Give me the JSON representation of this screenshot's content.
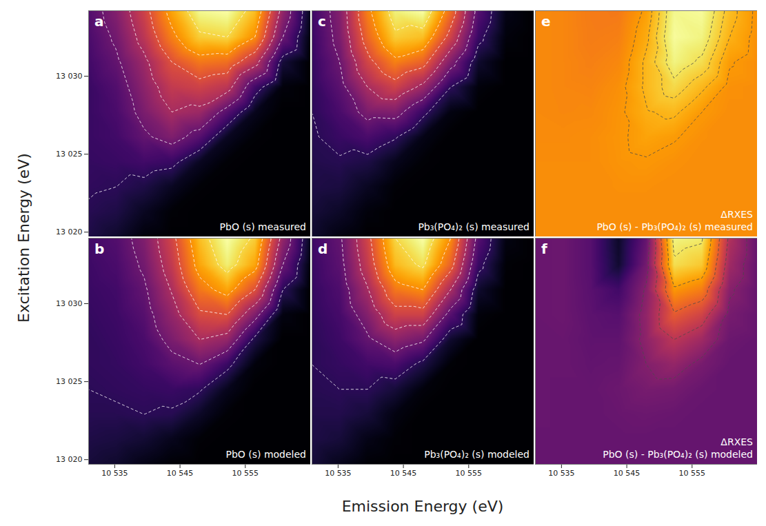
{
  "xlabel": "Emission Energy (eV)",
  "ylabel": "Excitation Energy (eV)",
  "chart_data": [
    {
      "type": "heatmap",
      "letter": "a",
      "title": "PbO (s) measured",
      "x": [
        10531,
        10535.25,
        10539.5,
        10543.75,
        10548,
        10552.25,
        10556.5,
        10560.75,
        10565
      ],
      "y": [
        13019.7,
        13021.3,
        13022.9,
        13024.5,
        13026.1,
        13027.7,
        13029.3,
        13030.9,
        13032.5,
        13034.2
      ],
      "values": [
        [
          0.12,
          0.08,
          0.02,
          0,
          0,
          0,
          0,
          0,
          0
        ],
        [
          0.14,
          0.12,
          0.06,
          0.01,
          0,
          0,
          0,
          0,
          0
        ],
        [
          0.16,
          0.15,
          0.12,
          0.06,
          0.01,
          0,
          0,
          0,
          0
        ],
        [
          0.17,
          0.18,
          0.2,
          0.18,
          0.06,
          0.01,
          0,
          0,
          0
        ],
        [
          0.18,
          0.2,
          0.28,
          0.35,
          0.25,
          0.06,
          0.01,
          0,
          0
        ],
        [
          0.18,
          0.22,
          0.34,
          0.45,
          0.42,
          0.25,
          0.05,
          0,
          0
        ],
        [
          0.18,
          0.24,
          0.38,
          0.52,
          0.55,
          0.5,
          0.2,
          0.02,
          0
        ],
        [
          0.2,
          0.28,
          0.42,
          0.6,
          0.7,
          0.68,
          0.5,
          0.1,
          0
        ],
        [
          0.22,
          0.32,
          0.5,
          0.72,
          0.88,
          0.9,
          0.75,
          0.3,
          0.02
        ],
        [
          0.24,
          0.36,
          0.55,
          0.8,
          0.98,
          1.0,
          0.85,
          0.4,
          0.05
        ]
      ],
      "xlim": [
        10531,
        10565
      ],
      "ylim": [
        13019.7,
        13034.2
      ],
      "xticks": [
        {
          "value": 10535,
          "label": "10 535"
        },
        {
          "value": 10545,
          "label": "10 545"
        },
        {
          "value": 10555,
          "label": "10 555"
        }
      ],
      "yticks": [
        {
          "value": 13020,
          "label": "13 020"
        },
        {
          "value": 13025,
          "label": "13 025"
        },
        {
          "value": 13030,
          "label": "13 030"
        }
      ],
      "tick_labels": "y",
      "color_range": [
        0,
        1
      ],
      "contour_levels": [
        0.15,
        0.3,
        0.45,
        0.6,
        0.75,
        0.9
      ]
    },
    {
      "type": "heatmap",
      "letter": "b",
      "title": "PbO (s) modeled",
      "x": [
        10531,
        10535.25,
        10539.5,
        10543.75,
        10548,
        10552.25,
        10556.5,
        10560.75,
        10565
      ],
      "y": [
        13019.7,
        13021.3,
        13022.9,
        13024.5,
        13026.1,
        13027.7,
        13029.3,
        13030.9,
        13032.5,
        13034.2
      ],
      "values": [
        [
          0.1,
          0.08,
          0.04,
          0.01,
          0,
          0,
          0,
          0,
          0
        ],
        [
          0.12,
          0.11,
          0.09,
          0.05,
          0.01,
          0,
          0,
          0,
          0
        ],
        [
          0.14,
          0.14,
          0.15,
          0.14,
          0.07,
          0.01,
          0,
          0,
          0
        ],
        [
          0.15,
          0.16,
          0.17,
          0.18,
          0.16,
          0.05,
          0,
          0,
          0
        ],
        [
          0.16,
          0.17,
          0.2,
          0.26,
          0.3,
          0.18,
          0.02,
          0,
          0
        ],
        [
          0.16,
          0.18,
          0.22,
          0.34,
          0.45,
          0.4,
          0.12,
          0,
          0
        ],
        [
          0.17,
          0.19,
          0.25,
          0.4,
          0.58,
          0.6,
          0.35,
          0.03,
          0
        ],
        [
          0.18,
          0.2,
          0.28,
          0.46,
          0.7,
          0.8,
          0.6,
          0.15,
          0
        ],
        [
          0.19,
          0.22,
          0.32,
          0.52,
          0.8,
          0.95,
          0.8,
          0.3,
          0.02
        ],
        [
          0.2,
          0.24,
          0.35,
          0.56,
          0.85,
          1.0,
          0.88,
          0.4,
          0.05
        ]
      ],
      "xlim": [
        10531,
        10565
      ],
      "ylim": [
        13019.7,
        13034.2
      ],
      "xticks": [
        {
          "value": 10535,
          "label": "10 535"
        },
        {
          "value": 10545,
          "label": "10 545"
        },
        {
          "value": 10555,
          "label": "10 555"
        }
      ],
      "yticks": [
        {
          "value": 13020,
          "label": "13 020"
        },
        {
          "value": 13025,
          "label": "13 025"
        },
        {
          "value": 13030,
          "label": "13 030"
        }
      ],
      "tick_labels": true,
      "color_range": [
        0,
        1
      ],
      "contour_levels": [
        0.15,
        0.3,
        0.45,
        0.6,
        0.75,
        0.9
      ]
    },
    {
      "type": "heatmap",
      "letter": "c",
      "title": "Pb₃(PO₄)₂ (s) measured",
      "x": [
        10531,
        10535.25,
        10539.5,
        10543.75,
        10548,
        10552.25,
        10556.5,
        10560.75,
        10565
      ],
      "y": [
        13019.7,
        13021.3,
        13022.9,
        13024.5,
        13026.1,
        13027.7,
        13029.3,
        13030.9,
        13032.5,
        13034.2
      ],
      "values": [
        [
          0.08,
          0.03,
          0,
          0,
          0,
          0,
          0,
          0,
          0
        ],
        [
          0.1,
          0.07,
          0.02,
          0,
          0,
          0,
          0,
          0,
          0
        ],
        [
          0.12,
          0.11,
          0.06,
          0.01,
          0,
          0,
          0,
          0,
          0
        ],
        [
          0.13,
          0.14,
          0.12,
          0.05,
          0.01,
          0,
          0,
          0,
          0
        ],
        [
          0.14,
          0.18,
          0.22,
          0.16,
          0.04,
          0,
          0,
          0,
          0
        ],
        [
          0.15,
          0.22,
          0.34,
          0.35,
          0.18,
          0.03,
          0,
          0,
          0
        ],
        [
          0.16,
          0.26,
          0.45,
          0.55,
          0.42,
          0.15,
          0.02,
          0,
          0
        ],
        [
          0.17,
          0.3,
          0.56,
          0.72,
          0.65,
          0.35,
          0.08,
          0,
          0
        ],
        [
          0.18,
          0.34,
          0.66,
          0.88,
          0.85,
          0.55,
          0.18,
          0.02,
          0
        ],
        [
          0.19,
          0.36,
          0.72,
          0.96,
          1.0,
          0.68,
          0.25,
          0.04,
          0
        ]
      ],
      "xlim": [
        10531,
        10565
      ],
      "ylim": [
        13019.7,
        13034.2
      ],
      "xticks": [
        {
          "value": 10535,
          "label": "10 535"
        },
        {
          "value": 10545,
          "label": "10 545"
        },
        {
          "value": 10555,
          "label": "10 555"
        }
      ],
      "yticks": [
        {
          "value": 13020,
          "label": "13 020"
        },
        {
          "value": 13025,
          "label": "13 025"
        },
        {
          "value": 13030,
          "label": "13 030"
        }
      ],
      "tick_labels": false,
      "color_range": [
        0,
        1
      ],
      "contour_levels": [
        0.15,
        0.3,
        0.45,
        0.6,
        0.75,
        0.9
      ]
    },
    {
      "type": "heatmap",
      "letter": "d",
      "title": "Pb₃(PO₄)₂ (s) modeled",
      "x": [
        10531,
        10535.25,
        10539.5,
        10543.75,
        10548,
        10552.25,
        10556.5,
        10560.75,
        10565
      ],
      "y": [
        13019.7,
        13021.3,
        13022.9,
        13024.5,
        13026.1,
        13027.7,
        13029.3,
        13030.9,
        13032.5,
        13034.2
      ],
      "values": [
        [
          0.1,
          0.05,
          0.01,
          0,
          0,
          0,
          0,
          0,
          0
        ],
        [
          0.12,
          0.1,
          0.04,
          0.01,
          0,
          0,
          0,
          0,
          0
        ],
        [
          0.13,
          0.13,
          0.1,
          0.03,
          0,
          0,
          0,
          0,
          0
        ],
        [
          0.14,
          0.15,
          0.15,
          0.1,
          0.02,
          0,
          0,
          0,
          0
        ],
        [
          0.15,
          0.17,
          0.2,
          0.22,
          0.12,
          0.01,
          0,
          0,
          0
        ],
        [
          0.15,
          0.19,
          0.28,
          0.38,
          0.32,
          0.08,
          0,
          0,
          0
        ],
        [
          0.16,
          0.21,
          0.36,
          0.55,
          0.55,
          0.25,
          0.02,
          0,
          0
        ],
        [
          0.17,
          0.23,
          0.44,
          0.7,
          0.75,
          0.45,
          0.08,
          0,
          0
        ],
        [
          0.18,
          0.26,
          0.52,
          0.84,
          0.92,
          0.65,
          0.18,
          0.01,
          0
        ],
        [
          0.19,
          0.28,
          0.56,
          0.9,
          1.0,
          0.75,
          0.25,
          0.03,
          0
        ]
      ],
      "xlim": [
        10531,
        10565
      ],
      "ylim": [
        13019.7,
        13034.2
      ],
      "xticks": [
        {
          "value": 10535,
          "label": "10 535"
        },
        {
          "value": 10545,
          "label": "10 545"
        },
        {
          "value": 10555,
          "label": "10 555"
        }
      ],
      "yticks": [
        {
          "value": 13020,
          "label": "13 020"
        },
        {
          "value": 13025,
          "label": "13 025"
        },
        {
          "value": 13030,
          "label": "13 030"
        }
      ],
      "tick_labels": "x",
      "color_range": [
        0,
        1
      ],
      "contour_levels": [
        0.15,
        0.3,
        0.45,
        0.6,
        0.75,
        0.9
      ]
    },
    {
      "type": "heatmap",
      "letter": "e",
      "annotation": "ΔRXES",
      "title": "PbO (s) - Pb₃(PO₄)₂ (s) measured",
      "x": [
        10531,
        10535.25,
        10539.5,
        10543.75,
        10548,
        10552.25,
        10556.5,
        10560.75,
        10565
      ],
      "y": [
        13019.7,
        13021.3,
        13022.9,
        13024.5,
        13026.1,
        13027.7,
        13029.3,
        13030.9,
        13032.5,
        13034.2
      ],
      "values": [
        [
          0,
          0,
          0,
          0,
          0,
          0,
          0,
          0,
          0
        ],
        [
          0,
          0,
          0,
          0,
          0,
          0,
          0,
          0,
          0
        ],
        [
          0,
          0,
          0,
          0.02,
          0.02,
          0,
          0,
          0,
          0
        ],
        [
          0,
          0,
          0,
          0.05,
          0.08,
          0.03,
          0,
          0,
          0
        ],
        [
          -0.02,
          -0.02,
          0,
          0.06,
          0.18,
          0.12,
          0.02,
          0,
          0
        ],
        [
          -0.03,
          -0.05,
          -0.04,
          0.05,
          0.28,
          0.35,
          0.1,
          0,
          0
        ],
        [
          -0.03,
          -0.06,
          -0.08,
          0.02,
          0.35,
          0.62,
          0.35,
          0.03,
          0
        ],
        [
          -0.03,
          -0.06,
          -0.12,
          -0.05,
          0.35,
          0.85,
          0.65,
          0.12,
          0
        ],
        [
          -0.03,
          -0.06,
          -0.15,
          -0.12,
          0.25,
          0.95,
          0.85,
          0.3,
          0.02
        ],
        [
          -0.03,
          -0.06,
          -0.16,
          -0.18,
          0.15,
          0.9,
          0.95,
          0.4,
          0.04
        ]
      ],
      "xlim": [
        10531,
        10565
      ],
      "ylim": [
        13019.7,
        13034.2
      ],
      "xticks": [
        {
          "value": 10535,
          "label": "10 535"
        },
        {
          "value": 10545,
          "label": "10 545"
        },
        {
          "value": 10555,
          "label": "10 555"
        }
      ],
      "yticks": [
        {
          "value": 13020,
          "label": "13 020"
        },
        {
          "value": 13025,
          "label": "13 025"
        },
        {
          "value": 13030,
          "label": "13 030"
        }
      ],
      "tick_labels": false,
      "color_range": [
        -3,
        1
      ],
      "contour_levels": [
        0.1,
        0.3,
        0.5,
        0.7
      ]
    },
    {
      "type": "heatmap",
      "letter": "f",
      "annotation": "ΔRXES",
      "title": "PbO (s) - Pb₃(PO₄)₂ (s) modeled",
      "x": [
        10531,
        10535.25,
        10539.5,
        10543.75,
        10548,
        10552.25,
        10556.5,
        10560.75,
        10565
      ],
      "y": [
        13019.7,
        13021.3,
        13022.9,
        13024.5,
        13026.1,
        13027.7,
        13029.3,
        13030.9,
        13032.5,
        13034.2
      ],
      "values": [
        [
          0,
          0,
          0,
          0,
          0,
          0,
          0,
          0,
          0
        ],
        [
          0,
          0,
          0,
          0,
          0,
          0,
          0,
          0,
          0
        ],
        [
          0.01,
          0,
          0,
          0.01,
          0.02,
          0.01,
          0,
          0,
          0
        ],
        [
          0.01,
          0,
          0,
          0.02,
          0.06,
          0.05,
          0.01,
          0,
          0
        ],
        [
          0.01,
          0.01,
          -0.01,
          0,
          0.1,
          0.16,
          0.06,
          0,
          0
        ],
        [
          0.01,
          0.01,
          -0.02,
          -0.02,
          0.14,
          0.3,
          0.2,
          0.02,
          0
        ],
        [
          0.01,
          0.02,
          -0.03,
          -0.05,
          0.15,
          0.48,
          0.38,
          0.06,
          0
        ],
        [
          0.01,
          0.02,
          -0.04,
          -0.12,
          0.12,
          0.68,
          0.6,
          0.12,
          0
        ],
        [
          0.01,
          0.02,
          -0.05,
          -0.28,
          0.05,
          0.88,
          0.82,
          0.2,
          0
        ],
        [
          0.01,
          0.02,
          -0.05,
          -0.3,
          0,
          0.95,
          0.92,
          0.26,
          0
        ]
      ],
      "xlim": [
        10531,
        10565
      ],
      "ylim": [
        13019.7,
        13034.2
      ],
      "xticks": [
        {
          "value": 10535,
          "label": "10 535"
        },
        {
          "value": 10545,
          "label": "10 545"
        },
        {
          "value": 10555,
          "label": "10 555"
        }
      ],
      "yticks": [
        {
          "value": 13020,
          "label": "13 020"
        },
        {
          "value": 13025,
          "label": "13 025"
        },
        {
          "value": 13030,
          "label": "13 030"
        }
      ],
      "tick_labels": "x",
      "color_range": [
        -0.4,
        1
      ],
      "contour_levels": [
        0.1,
        0.3,
        0.5,
        0.7,
        0.9
      ]
    }
  ]
}
